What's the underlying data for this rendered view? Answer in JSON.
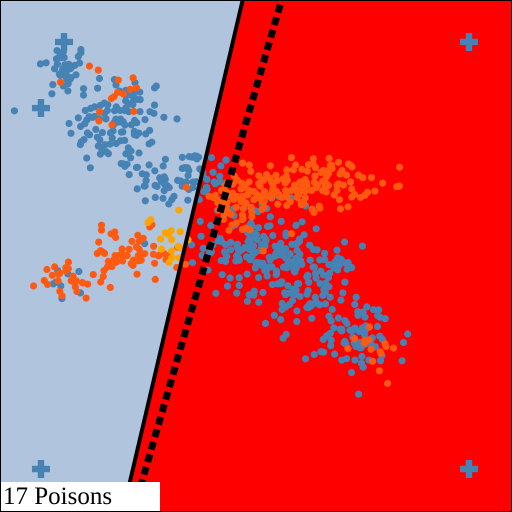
{
  "caption": "17 Poisons",
  "chart_data": {
    "type": "scatter",
    "xlim": [
      0,
      1
    ],
    "ylim": [
      0,
      1
    ],
    "grid": false,
    "regions": [
      {
        "name": "class-a-region",
        "color": "#b0c4de"
      },
      {
        "name": "class-b-region",
        "color": "#ff0000"
      }
    ],
    "boundaries": {
      "current": {
        "style": "solid",
        "color": "#000000",
        "points": [
          [
            0.24,
            0.0
          ],
          [
            0.474,
            1.0
          ]
        ]
      },
      "clean": {
        "style": "dashed",
        "color": "#000000",
        "points": [
          [
            0.26,
            0.0
          ],
          [
            0.55,
            1.0
          ]
        ]
      }
    },
    "markers": [
      {
        "shape": "plus",
        "color": "#4682b4",
        "x": 0.125,
        "y": 0.918
      },
      {
        "shape": "plus",
        "color": "#4682b4",
        "x": 0.916,
        "y": 0.918
      },
      {
        "shape": "plus",
        "color": "#4682b4",
        "x": 0.08,
        "y": 0.789
      },
      {
        "shape": "plus",
        "color": "#4682b4",
        "x": 0.08,
        "y": 0.084
      },
      {
        "shape": "plus",
        "color": "#4682b4",
        "x": 0.916,
        "y": 0.084
      }
    ],
    "series": [
      {
        "color": "#4682b4",
        "clusters": [
          {
            "center": [
              0.125,
              0.865
            ],
            "spread": [
              0.025,
              0.025
            ],
            "count": 35
          },
          {
            "center": [
              0.23,
              0.76
            ],
            "spread": [
              0.05,
              0.05
            ],
            "count": 110
          },
          {
            "center": [
              0.36,
              0.65
            ],
            "spread": [
              0.05,
              0.03
            ],
            "count": 70
          },
          {
            "center": [
              0.5,
              0.52
            ],
            "spread": [
              0.05,
              0.04
            ],
            "count": 140
          },
          {
            "center": [
              0.6,
              0.44
            ],
            "spread": [
              0.05,
              0.04
            ],
            "count": 110
          },
          {
            "center": [
              0.7,
              0.34
            ],
            "spread": [
              0.05,
              0.04
            ],
            "count": 70
          },
          {
            "center": [
              0.14,
              0.45
            ],
            "spread": [
              0.02,
              0.02
            ],
            "count": 8
          }
        ]
      },
      {
        "color": "#ff5a10",
        "clusters": [
          {
            "center": [
              0.6,
              0.64
            ],
            "spread": [
              0.06,
              0.025
            ],
            "count": 130
          },
          {
            "center": [
              0.46,
              0.6
            ],
            "spread": [
              0.04,
              0.03
            ],
            "count": 60
          },
          {
            "center": [
              0.25,
              0.5
            ],
            "spread": [
              0.05,
              0.025
            ],
            "count": 60
          },
          {
            "center": [
              0.13,
              0.45
            ],
            "spread": [
              0.03,
              0.02
            ],
            "count": 25
          },
          {
            "center": [
              0.22,
              0.8
            ],
            "spread": [
              0.04,
              0.04
            ],
            "count": 15
          },
          {
            "center": [
              0.72,
              0.33
            ],
            "spread": [
              0.04,
              0.03
            ],
            "count": 15
          }
        ]
      },
      {
        "color": "#ffa500",
        "clusters": [
          {
            "center": [
              0.33,
              0.535
            ],
            "spread": [
              0.022,
              0.03
            ],
            "count": 17
          }
        ]
      }
    ]
  }
}
